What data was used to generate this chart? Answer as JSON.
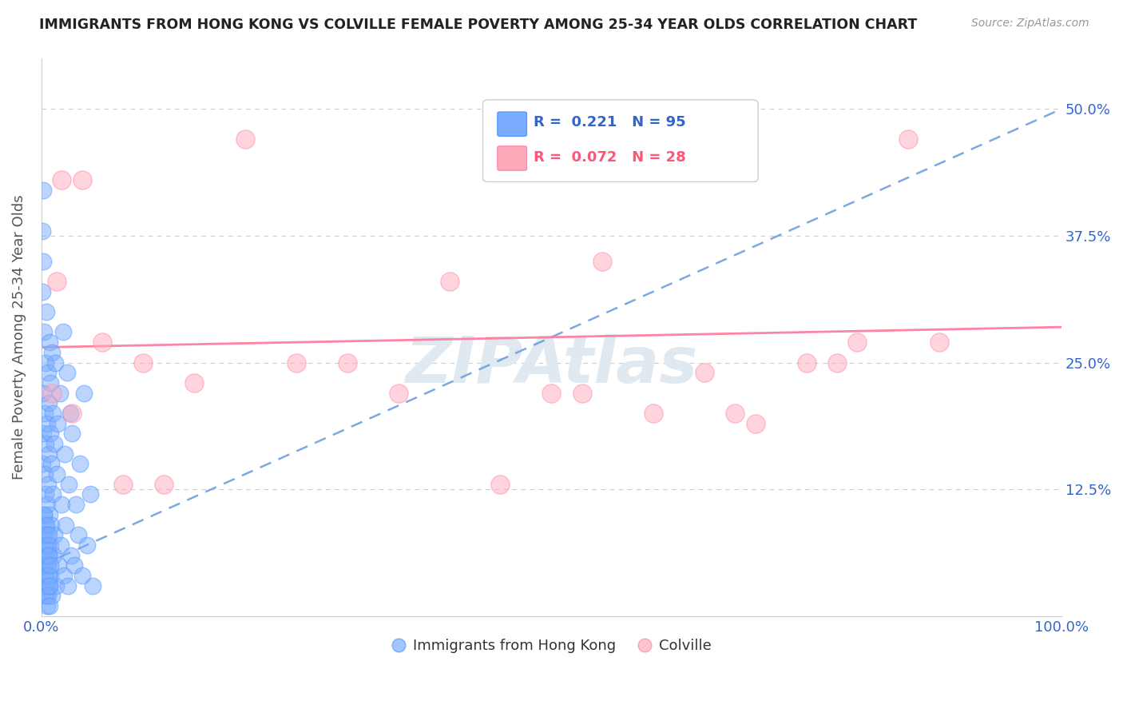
{
  "title": "IMMIGRANTS FROM HONG KONG VS COLVILLE FEMALE POVERTY AMONG 25-34 YEAR OLDS CORRELATION CHART",
  "source": "Source: ZipAtlas.com",
  "ylabel": "Female Poverty Among 25-34 Year Olds",
  "xlim": [
    0,
    100
  ],
  "ylim": [
    0,
    55
  ],
  "yticks": [
    0,
    12.5,
    25.0,
    37.5,
    50.0
  ],
  "ytick_labels": [
    "",
    "12.5%",
    "25.0%",
    "37.5%",
    "50.0%"
  ],
  "xticks": [
    0,
    100
  ],
  "xtick_labels": [
    "0.0%",
    "100.0%"
  ],
  "blue_color": "#7aadff",
  "blue_edge_color": "#5599ff",
  "pink_color": "#ffaabb",
  "pink_edge_color": "#ff88aa",
  "blue_line_color": "#6699dd",
  "pink_line_color": "#ff7799",
  "watermark": "ZIPAtlas",
  "grid_color": "#cccccc",
  "blue_r": "0.221",
  "blue_n": "95",
  "pink_r": "0.072",
  "pink_n": "28",
  "blue_trend_x0": 0,
  "blue_trend_y0": 5,
  "blue_trend_x1": 100,
  "blue_trend_y1": 50,
  "pink_trend_x0": 0,
  "pink_trend_y0": 26.5,
  "pink_trend_x1": 100,
  "pink_trend_y1": 28.5,
  "blue_points_x": [
    0.05,
    0.08,
    0.12,
    0.15,
    0.18,
    0.2,
    0.22,
    0.25,
    0.28,
    0.3,
    0.32,
    0.35,
    0.38,
    0.4,
    0.42,
    0.45,
    0.48,
    0.5,
    0.52,
    0.55,
    0.58,
    0.6,
    0.62,
    0.65,
    0.68,
    0.7,
    0.72,
    0.75,
    0.78,
    0.8,
    0.82,
    0.85,
    0.88,
    0.9,
    0.92,
    0.95,
    0.98,
    1.0,
    1.05,
    1.1,
    1.15,
    1.2,
    1.25,
    1.3,
    1.35,
    1.4,
    1.5,
    1.6,
    1.7,
    1.8,
    1.9,
    2.0,
    2.1,
    2.2,
    2.3,
    2.4,
    2.5,
    2.6,
    2.7,
    2.8,
    2.9,
    3.0,
    3.2,
    3.4,
    3.6,
    3.8,
    4.0,
    4.2,
    4.5,
    4.8,
    5.0,
    0.1,
    0.13,
    0.16,
    0.19,
    0.23,
    0.26,
    0.29,
    0.33,
    0.36,
    0.39,
    0.43,
    0.46,
    0.49,
    0.53,
    0.56,
    0.59,
    0.63,
    0.66,
    0.69,
    0.73,
    0.76,
    0.79,
    0.83,
    0.86
  ],
  "blue_points_y": [
    8.0,
    15.0,
    5.0,
    22.0,
    3.0,
    18.0,
    10.0,
    28.0,
    6.0,
    14.0,
    20.0,
    9.0,
    25.0,
    4.0,
    12.0,
    17.0,
    7.0,
    30.0,
    2.0,
    11.0,
    19.0,
    8.0,
    24.0,
    5.0,
    13.0,
    21.0,
    6.0,
    16.0,
    27.0,
    3.0,
    10.0,
    18.0,
    7.0,
    23.0,
    4.0,
    15.0,
    9.0,
    26.0,
    2.0,
    12.0,
    20.0,
    6.0,
    17.0,
    8.0,
    25.0,
    3.0,
    14.0,
    19.0,
    5.0,
    22.0,
    7.0,
    11.0,
    28.0,
    4.0,
    16.0,
    9.0,
    24.0,
    3.0,
    13.0,
    20.0,
    6.0,
    18.0,
    5.0,
    11.0,
    8.0,
    15.0,
    4.0,
    22.0,
    7.0,
    12.0,
    3.0,
    32.0,
    38.0,
    42.0,
    35.0,
    10.0,
    8.0,
    5.0,
    3.0,
    7.0,
    2.0,
    4.0,
    6.0,
    9.0,
    1.0,
    3.0,
    5.0,
    7.0,
    2.0,
    4.0,
    6.0,
    8.0,
    1.0,
    3.0,
    5.0
  ],
  "pink_points_x": [
    1.5,
    2.0,
    4.0,
    8.0,
    12.0,
    20.0,
    30.0,
    40.0,
    50.0,
    55.0,
    60.0,
    65.0,
    70.0,
    75.0,
    80.0,
    85.0,
    3.0,
    6.0,
    10.0,
    15.0,
    25.0,
    35.0,
    45.0,
    53.0,
    68.0,
    78.0,
    88.0,
    1.0
  ],
  "pink_points_y": [
    33.0,
    43.0,
    43.0,
    13.0,
    13.0,
    47.0,
    25.0,
    33.0,
    22.0,
    35.0,
    20.0,
    24.0,
    19.0,
    25.0,
    27.0,
    47.0,
    20.0,
    27.0,
    25.0,
    23.0,
    25.0,
    22.0,
    13.0,
    22.0,
    20.0,
    25.0,
    27.0,
    22.0
  ]
}
